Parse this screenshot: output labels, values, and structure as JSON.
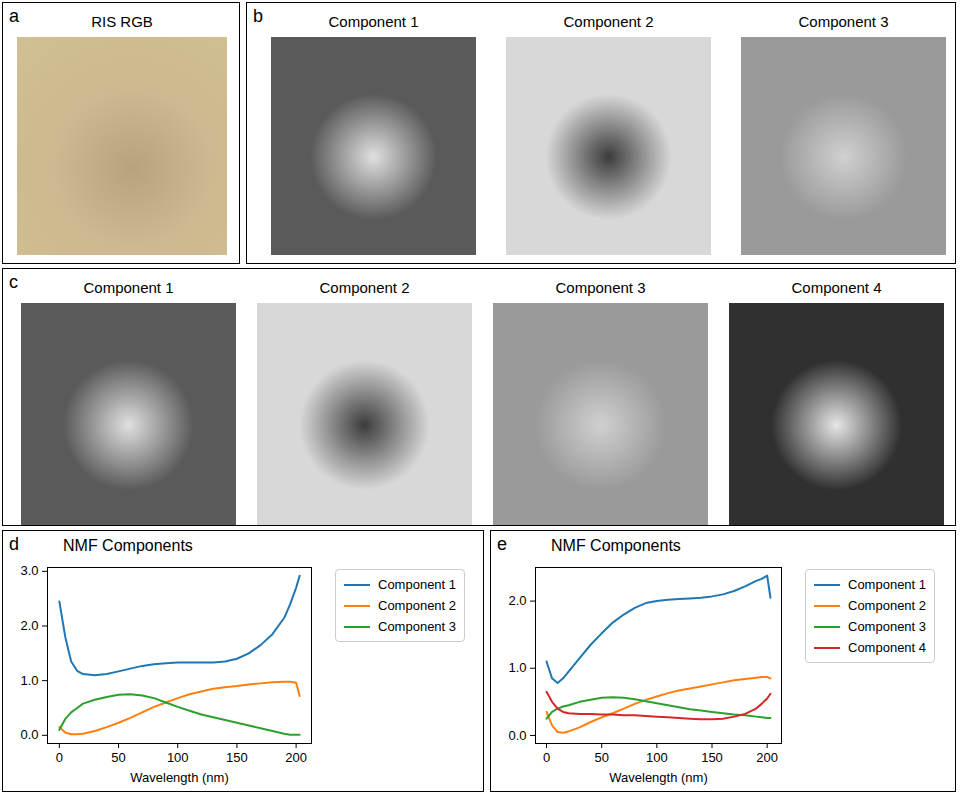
{
  "image_panels": [
    {
      "label": "a",
      "titles": [
        "RIS RGB"
      ]
    },
    {
      "label": "b",
      "titles": [
        "Component 1",
        "Component 2",
        "Component 3"
      ]
    },
    {
      "label": "c",
      "titles": [
        "Component 1",
        "Component 2",
        "Component 3",
        "Component 4"
      ]
    }
  ],
  "chart_data": [
    {
      "type": "line",
      "annotations": [
        "d"
      ],
      "title": "NMF Components",
      "x_label": "Wavelength (nm)",
      "x": [
        0,
        5,
        10,
        15,
        20,
        30,
        40,
        50,
        60,
        70,
        80,
        90,
        100,
        110,
        120,
        130,
        140,
        150,
        160,
        170,
        180,
        190,
        195,
        200,
        203
      ],
      "series": [
        {
          "name": "Component 1",
          "color": "#1f77b4",
          "values": [
            2.45,
            1.8,
            1.35,
            1.18,
            1.12,
            1.1,
            1.12,
            1.17,
            1.22,
            1.27,
            1.3,
            1.32,
            1.33,
            1.33,
            1.33,
            1.33,
            1.35,
            1.4,
            1.5,
            1.65,
            1.85,
            2.15,
            2.4,
            2.7,
            2.92
          ]
        },
        {
          "name": "Component 2",
          "color": "#ff7f0e",
          "values": [
            0.15,
            0.05,
            0.02,
            0.02,
            0.03,
            0.08,
            0.15,
            0.23,
            0.32,
            0.42,
            0.52,
            0.6,
            0.68,
            0.75,
            0.8,
            0.85,
            0.88,
            0.9,
            0.93,
            0.95,
            0.97,
            0.98,
            0.98,
            0.96,
            0.72
          ]
        },
        {
          "name": "Component 3",
          "color": "#2ca02c",
          "values": [
            0.1,
            0.3,
            0.42,
            0.5,
            0.58,
            0.65,
            0.7,
            0.74,
            0.75,
            0.73,
            0.68,
            0.6,
            0.52,
            0.45,
            0.38,
            0.33,
            0.28,
            0.23,
            0.18,
            0.13,
            0.08,
            0.03,
            0.01,
            0.01,
            0.01
          ]
        }
      ],
      "xlim": [
        -10,
        213
      ],
      "xticks": [
        0,
        50,
        100,
        150,
        200
      ],
      "ylim": [
        -0.15,
        3.07
      ],
      "yticks": [
        0,
        1,
        2,
        3
      ],
      "legend": "right"
    },
    {
      "type": "line",
      "annotations": [
        "e"
      ],
      "title": "NMF Components",
      "x_label": "Wavelength (nm)",
      "x": [
        0,
        5,
        10,
        15,
        20,
        30,
        40,
        50,
        60,
        70,
        80,
        90,
        100,
        110,
        120,
        130,
        140,
        150,
        160,
        170,
        180,
        190,
        195,
        200,
        203
      ],
      "series": [
        {
          "name": "Component 1",
          "color": "#1f77b4",
          "values": [
            1.1,
            0.85,
            0.78,
            0.85,
            0.95,
            1.15,
            1.35,
            1.52,
            1.68,
            1.8,
            1.9,
            1.97,
            2.0,
            2.02,
            2.03,
            2.04,
            2.05,
            2.07,
            2.1,
            2.15,
            2.22,
            2.3,
            2.33,
            2.38,
            2.05
          ]
        },
        {
          "name": "Component 2",
          "color": "#ff7f0e",
          "values": [
            0.35,
            0.15,
            0.05,
            0.04,
            0.06,
            0.12,
            0.2,
            0.27,
            0.33,
            0.4,
            0.47,
            0.53,
            0.58,
            0.63,
            0.67,
            0.7,
            0.73,
            0.76,
            0.79,
            0.82,
            0.84,
            0.86,
            0.87,
            0.87,
            0.85
          ]
        },
        {
          "name": "Component 3",
          "color": "#2ca02c",
          "values": [
            0.25,
            0.35,
            0.4,
            0.43,
            0.45,
            0.5,
            0.53,
            0.56,
            0.57,
            0.56,
            0.54,
            0.51,
            0.48,
            0.45,
            0.42,
            0.39,
            0.37,
            0.35,
            0.33,
            0.31,
            0.3,
            0.28,
            0.27,
            0.26,
            0.26
          ]
        },
        {
          "name": "Component 4",
          "color": "#d62728",
          "values": [
            0.65,
            0.5,
            0.4,
            0.35,
            0.33,
            0.32,
            0.32,
            0.31,
            0.31,
            0.3,
            0.3,
            0.29,
            0.28,
            0.27,
            0.26,
            0.25,
            0.24,
            0.24,
            0.25,
            0.28,
            0.32,
            0.4,
            0.47,
            0.55,
            0.62
          ]
        }
      ],
      "xlim": [
        -10,
        213
      ],
      "xticks": [
        0,
        50,
        100,
        150,
        200
      ],
      "ylim": [
        -0.12,
        2.5
      ],
      "yticks": [
        0,
        1,
        2
      ],
      "legend": "right"
    }
  ]
}
